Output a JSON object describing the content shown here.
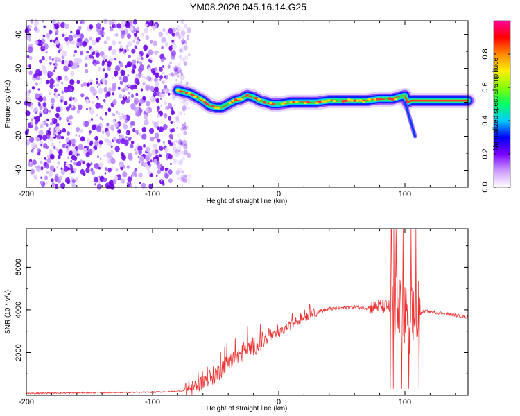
{
  "title": "YM08.2026.045.16.14.G25",
  "chart_data": [
    {
      "type": "heatmap",
      "xlabel": "Height of straight line (km)",
      "ylabel": "Frequency (Hz)",
      "xlim": [
        -200,
        150
      ],
      "ylim": [
        -50,
        48
      ],
      "xticks": [
        -200,
        -100,
        0,
        100
      ],
      "xtick_labels": [
        "-200",
        "-100",
        "0",
        "100"
      ],
      "yticks": [
        -40,
        -20,
        0,
        20,
        40
      ],
      "ytick_labels": [
        "-40",
        "-20",
        "0",
        "20",
        "40"
      ],
      "colorbar": {
        "label": "Normalized spectral amplitude",
        "range": [
          0,
          1
        ],
        "ticks": [
          0.0,
          0.2,
          0.4,
          0.6,
          0.8
        ],
        "tick_labels": [
          "0.0",
          "0.2",
          "0.4",
          "0.6",
          "0.8"
        ],
        "colors": [
          "#ffffff",
          "#cc99ff",
          "#7a00ff",
          "#0000ff",
          "#00ccff",
          "#00ff66",
          "#88ff00",
          "#ffee00",
          "#ff8800",
          "#ff0000",
          "#ff0099"
        ]
      },
      "noise_region_x": [
        -200,
        -75
      ],
      "ridge": {
        "x": [
          -80,
          -75,
          -70,
          -65,
          -60,
          -55,
          -50,
          -45,
          -40,
          -35,
          -30,
          -25,
          -20,
          -15,
          -10,
          -5,
          0,
          10,
          20,
          30,
          40,
          50,
          60,
          70,
          80,
          90,
          95,
          100,
          102,
          105,
          110,
          120,
          130,
          140,
          150
        ],
        "y": [
          7,
          6,
          5,
          3,
          1,
          -2,
          -3,
          -3,
          -1,
          1,
          2,
          4,
          3,
          1,
          0,
          -1,
          -1,
          0,
          0,
          0,
          1,
          1,
          1,
          1,
          2,
          2,
          3,
          4,
          0,
          1,
          1,
          1,
          1,
          1,
          1
        ]
      },
      "branch": {
        "x": [
          100,
          104,
          108
        ],
        "y": [
          0,
          -10,
          -20
        ]
      }
    },
    {
      "type": "line",
      "xlabel": "Height of straight line (km)",
      "ylabel": "SNR (10 * v/v)",
      "xlim": [
        -200,
        150
      ],
      "ylim": [
        0,
        7800
      ],
      "xticks": [
        -200,
        -100,
        0,
        100
      ],
      "xtick_labels": [
        "-200",
        "-100",
        "0",
        "100"
      ],
      "yticks": [
        2000,
        4000,
        6000
      ],
      "ytick_labels": [
        "2000",
        "4000",
        "6000"
      ],
      "color": "#ee3333",
      "envelope": {
        "x": [
          -200,
          -150,
          -100,
          -80,
          -70,
          -60,
          -50,
          -40,
          -30,
          -20,
          -10,
          0,
          10,
          20,
          30,
          40,
          50,
          60,
          70,
          80,
          90,
          95,
          100,
          105,
          110,
          115,
          120,
          130,
          140,
          150
        ],
        "y": [
          90,
          120,
          140,
          180,
          280,
          600,
          1000,
          1500,
          1900,
          2300,
          2600,
          2900,
          3300,
          3650,
          3900,
          4050,
          4100,
          4150,
          4100,
          4200,
          4100,
          3900,
          3600,
          3500,
          3700,
          3950,
          3900,
          3850,
          3750,
          3650
        ]
      },
      "noise_amplitude": [
        {
          "x0": -200,
          "x1": -75,
          "amp": 60
        },
        {
          "x0": -75,
          "x1": -55,
          "amp": 700
        },
        {
          "x0": -55,
          "x1": -10,
          "amp": 900
        },
        {
          "x0": -10,
          "x1": 30,
          "amp": 450
        },
        {
          "x0": 30,
          "x1": 72,
          "amp": 180
        },
        {
          "x0": 72,
          "x1": 88,
          "amp": 700
        },
        {
          "x0": 88,
          "x1": 112,
          "amp": 3300
        },
        {
          "x0": 112,
          "x1": 150,
          "amp": 150
        }
      ]
    }
  ]
}
